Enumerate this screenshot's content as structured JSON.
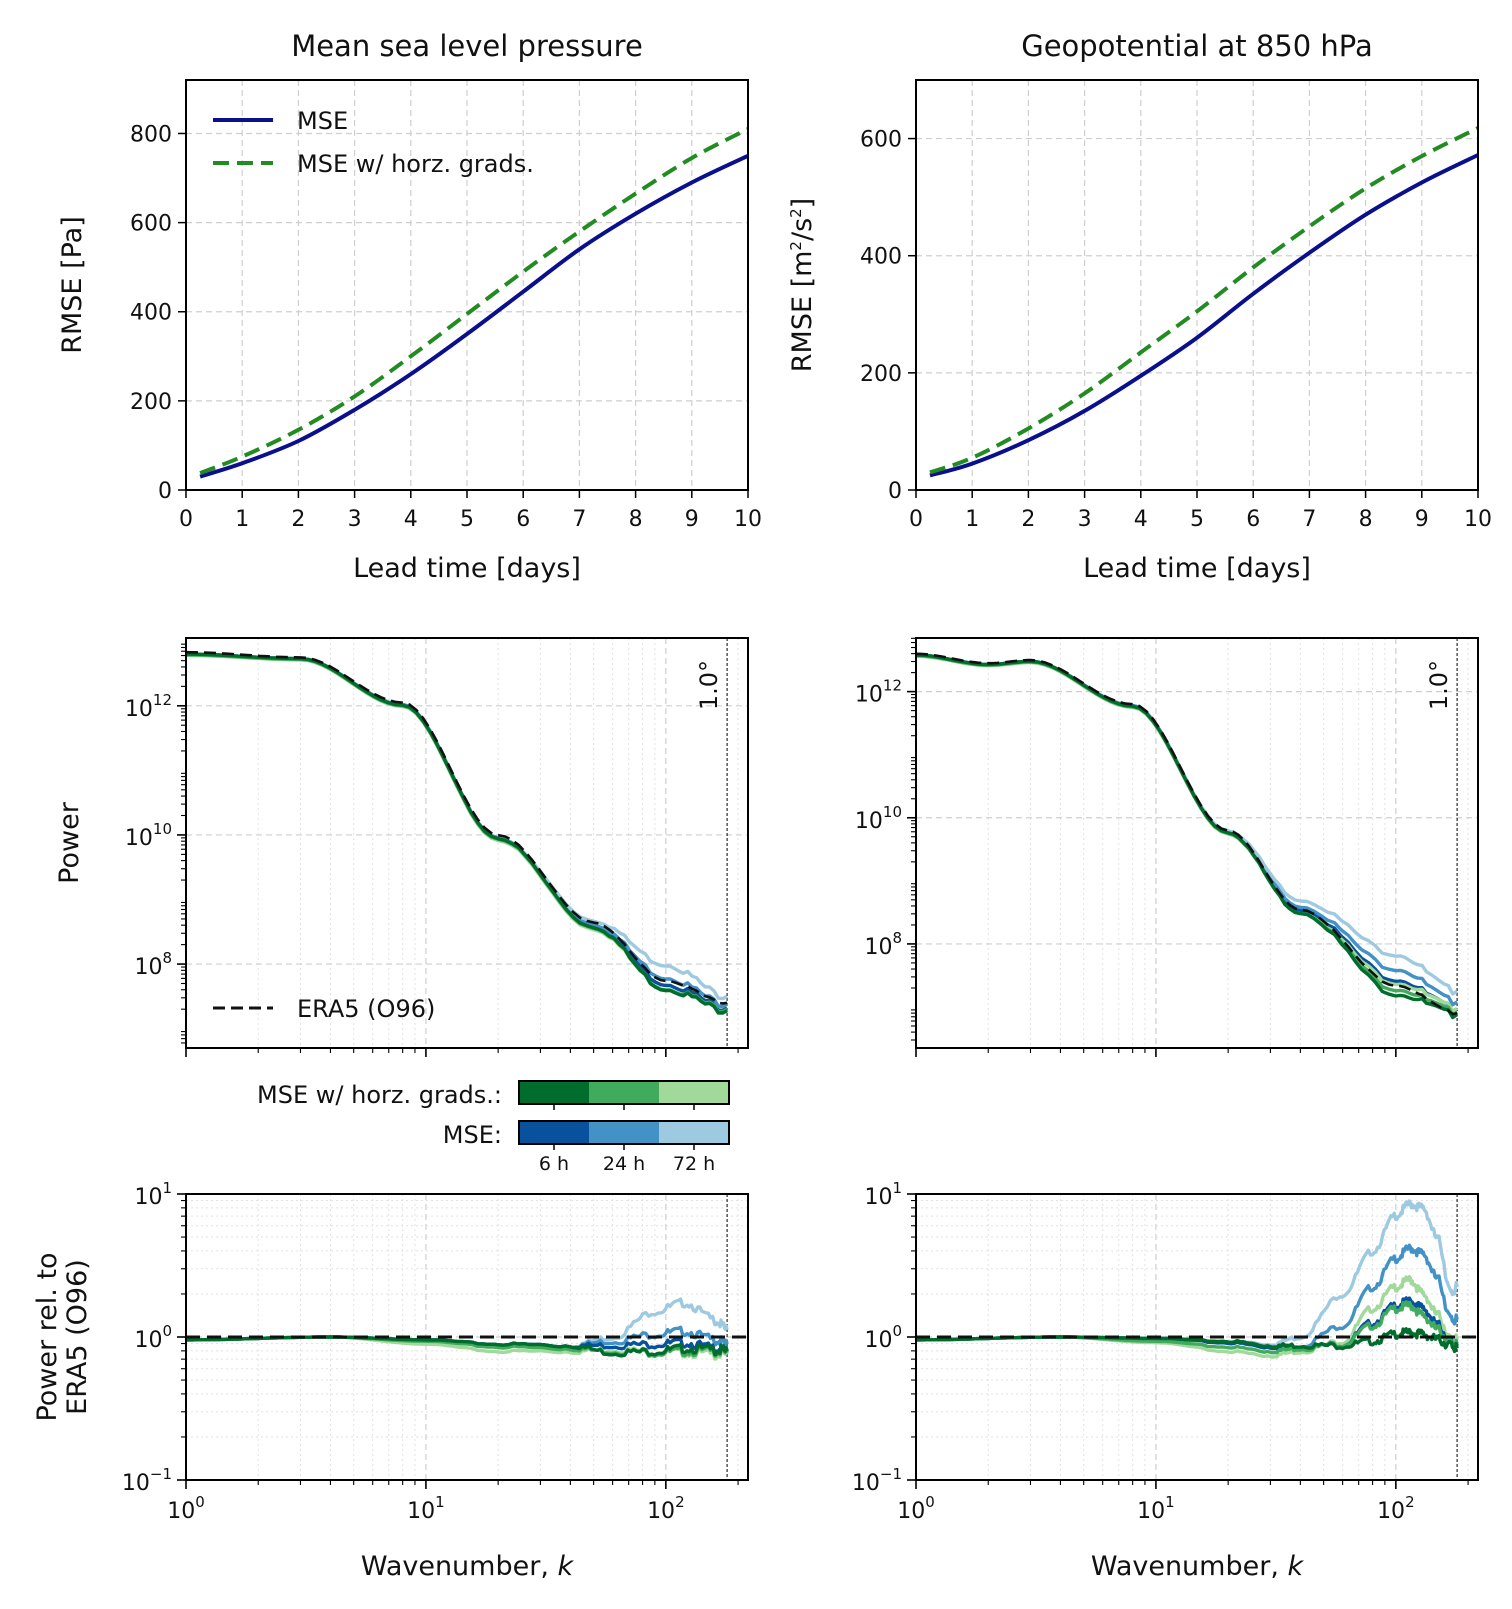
{
  "colors": {
    "mse": "#0a0f8c",
    "grads": "#228b22",
    "era5": "#111111",
    "grads_6h": "#006d2c",
    "grads_24h": "#41ab5d",
    "grads_72h": "#a1d99b",
    "mse_6h": "#08519c",
    "mse_24h": "#4292c6",
    "mse_72h": "#9ecae1"
  },
  "colorbar": {
    "row1_label": "MSE w/ horz. grads.:",
    "row2_label": "MSE:",
    "ticks": [
      "6 h",
      "24 h",
      "72 h"
    ]
  },
  "chart_data": [
    {
      "id": "rmse_msl",
      "type": "line",
      "title": "Mean sea level pressure",
      "xlabel": "Lead time [days]",
      "ylabel": "RMSE [Pa]",
      "xlim": [
        0,
        10
      ],
      "ylim": [
        0,
        920
      ],
      "xticks": [
        0,
        1,
        2,
        3,
        4,
        5,
        6,
        7,
        8,
        9,
        10
      ],
      "xtick_labels": [
        "0",
        "1",
        "2",
        "3",
        "4",
        "5",
        "6",
        "7",
        "8",
        "9",
        "10"
      ],
      "yticks": [
        0,
        200,
        400,
        600,
        800
      ],
      "ytick_labels": [
        "0",
        "200",
        "400",
        "600",
        "800"
      ],
      "legend": [
        {
          "label": "MSE",
          "style": "solid",
          "color": "#0a0f8c"
        },
        {
          "label": "MSE w/ horz. grads.",
          "style": "dashed",
          "color": "#228b22"
        }
      ],
      "x": [
        0.25,
        1,
        2,
        3,
        4,
        5,
        6,
        7,
        8,
        9,
        10
      ],
      "series": [
        {
          "name": "MSE",
          "style": "solid",
          "color": "#0a0f8c",
          "values": [
            30,
            60,
            110,
            180,
            260,
            350,
            445,
            540,
            620,
            690,
            750
          ]
        },
        {
          "name": "MSE w/ horz. grads.",
          "style": "dashed",
          "color": "#228b22",
          "values": [
            38,
            75,
            135,
            210,
            300,
            395,
            490,
            580,
            665,
            745,
            810
          ]
        }
      ]
    },
    {
      "id": "rmse_z850",
      "type": "line",
      "title": "Geopotential at 850 hPa",
      "xlabel": "Lead time [days]",
      "ylabel": "RMSE [m²/s²]",
      "xlim": [
        0,
        10
      ],
      "ylim": [
        0,
        700
      ],
      "xticks": [
        0,
        1,
        2,
        3,
        4,
        5,
        6,
        7,
        8,
        9,
        10
      ],
      "xtick_labels": [
        "0",
        "1",
        "2",
        "3",
        "4",
        "5",
        "6",
        "7",
        "8",
        "9",
        "10"
      ],
      "yticks": [
        0,
        200,
        400,
        600
      ],
      "ytick_labels": [
        "0",
        "200",
        "400",
        "600"
      ],
      "x": [
        0.25,
        1,
        2,
        3,
        4,
        5,
        6,
        7,
        8,
        9,
        10
      ],
      "series": [
        {
          "name": "MSE",
          "style": "solid",
          "color": "#0a0f8c",
          "values": [
            25,
            45,
            85,
            135,
            195,
            260,
            335,
            405,
            470,
            525,
            572
          ]
        },
        {
          "name": "MSE w/ horz. grads.",
          "style": "dashed",
          "color": "#228b22",
          "values": [
            30,
            55,
            105,
            165,
            235,
            305,
            380,
            450,
            515,
            570,
            618
          ]
        }
      ]
    },
    {
      "id": "spec_msl",
      "type": "line",
      "xscale": "log",
      "yscale": "log",
      "ylabel": "Power",
      "xlim": [
        1,
        220
      ],
      "ylim_log10": [
        6.7,
        13.05
      ],
      "yticks_log10": [
        8,
        10,
        12
      ],
      "ytick_labels": [
        {
          "base": "10",
          "exp": "8"
        },
        {
          "base": "10",
          "exp": "10"
        },
        {
          "base": "10",
          "exp": "12"
        }
      ],
      "vline_k": 180,
      "vline_label": "1.0°",
      "legend": [
        {
          "label": "ERA5 (O96)",
          "style": "dashed",
          "color": "#111111"
        }
      ],
      "reference": {
        "name": "ERA5 (O96)",
        "k": [
          1,
          3,
          8,
          20,
          50,
          100,
          180
        ],
        "log10_power": [
          12.83,
          12.75,
          12.05,
          10.0,
          8.65,
          7.75,
          7.4
        ]
      },
      "series": [
        {
          "name": "MSE 6 h",
          "color": "#08519c",
          "k": [
            1,
            3,
            8,
            20,
            50,
            100,
            180
          ],
          "log10_power": [
            12.8,
            12.73,
            12.02,
            9.96,
            8.6,
            7.7,
            7.32
          ]
        },
        {
          "name": "MSE 24 h",
          "color": "#4292c6",
          "k": [
            1,
            3,
            8,
            20,
            50,
            100,
            180
          ],
          "log10_power": [
            12.8,
            12.73,
            12.02,
            9.96,
            8.62,
            7.8,
            7.38
          ]
        },
        {
          "name": "MSE 72 h",
          "color": "#9ecae1",
          "k": [
            1,
            3,
            8,
            20,
            50,
            100,
            180
          ],
          "log10_power": [
            12.79,
            12.72,
            12.01,
            9.95,
            8.68,
            8.0,
            7.5
          ]
        },
        {
          "name": "MSE w/ horz. grads. 72 h",
          "color": "#a1d99b",
          "k": [
            1,
            3,
            8,
            20,
            50,
            100,
            180
          ],
          "log10_power": [
            12.78,
            12.71,
            11.99,
            9.92,
            8.55,
            7.62,
            7.28
          ]
        },
        {
          "name": "MSE w/ horz. grads. 24 h",
          "color": "#41ab5d",
          "k": [
            1,
            3,
            8,
            20,
            50,
            100,
            180
          ],
          "log10_power": [
            12.79,
            12.72,
            12.0,
            9.94,
            8.57,
            7.63,
            7.3
          ]
        },
        {
          "name": "MSE w/ horz. grads. 6 h",
          "color": "#006d2c",
          "k": [
            1,
            3,
            8,
            20,
            50,
            100,
            180
          ],
          "log10_power": [
            12.8,
            12.73,
            12.01,
            9.95,
            8.58,
            7.62,
            7.28
          ]
        }
      ]
    },
    {
      "id": "spec_z850",
      "type": "line",
      "xscale": "log",
      "yscale": "log",
      "xlim": [
        1,
        220
      ],
      "ylim_log10": [
        6.35,
        12.85
      ],
      "yticks_log10": [
        8,
        10,
        12
      ],
      "ytick_labels": [
        {
          "base": "10",
          "exp": "8"
        },
        {
          "base": "10",
          "exp": "10"
        },
        {
          "base": "10",
          "exp": "12"
        }
      ],
      "vline_k": 180,
      "vline_label": "1.0°",
      "reference": {
        "name": "ERA5 (O96)",
        "k": [
          1,
          2,
          3,
          8,
          20,
          40,
          100,
          180
        ],
        "log10_power": [
          12.6,
          12.45,
          12.5,
          11.8,
          9.8,
          8.55,
          7.35,
          6.9
        ]
      },
      "series": [
        {
          "name": "MSE 6 h",
          "color": "#08519c",
          "k": [
            1,
            2,
            3,
            8,
            20,
            40,
            100,
            180
          ],
          "log10_power": [
            12.58,
            12.43,
            12.48,
            11.78,
            9.78,
            8.55,
            7.45,
            6.97
          ]
        },
        {
          "name": "MSE 24 h",
          "color": "#4292c6",
          "k": [
            1,
            2,
            3,
            8,
            20,
            40,
            100,
            180
          ],
          "log10_power": [
            12.58,
            12.43,
            12.48,
            11.78,
            9.79,
            8.6,
            7.62,
            7.08
          ]
        },
        {
          "name": "MSE 72 h",
          "color": "#9ecae1",
          "k": [
            1,
            2,
            3,
            8,
            20,
            40,
            100,
            180
          ],
          "log10_power": [
            12.57,
            12.42,
            12.47,
            11.77,
            9.8,
            8.7,
            7.85,
            7.25
          ]
        },
        {
          "name": "MSE w/ horz. grads. 72 h",
          "color": "#a1d99b",
          "k": [
            1,
            2,
            3,
            8,
            20,
            40,
            100,
            180
          ],
          "log10_power": [
            12.56,
            12.41,
            12.46,
            11.75,
            9.75,
            8.5,
            7.4,
            6.98
          ]
        },
        {
          "name": "MSE w/ horz. grads. 24 h",
          "color": "#41ab5d",
          "k": [
            1,
            2,
            3,
            8,
            20,
            40,
            100,
            180
          ],
          "log10_power": [
            12.57,
            12.42,
            12.47,
            11.76,
            9.76,
            8.5,
            7.3,
            6.92
          ]
        },
        {
          "name": "MSE w/ horz. grads. 6 h",
          "color": "#006d2c",
          "k": [
            1,
            2,
            3,
            8,
            20,
            40,
            100,
            180
          ],
          "log10_power": [
            12.58,
            12.43,
            12.48,
            11.77,
            9.77,
            8.5,
            7.22,
            6.88
          ]
        }
      ]
    },
    {
      "id": "rel_msl",
      "type": "line",
      "xscale": "log",
      "yscale": "log",
      "xlabel": "Wavenumber, k",
      "ylabel": "Power rel. to ERA5 (O96)",
      "ylabel_lines": [
        "Power rel. to",
        "ERA5 (O96)"
      ],
      "xlim": [
        1,
        220
      ],
      "ylim_log10": [
        -1,
        1
      ],
      "xticks": [
        1,
        10,
        100
      ],
      "xtick_labels": [
        {
          "base": "10",
          "exp": "0"
        },
        {
          "base": "10",
          "exp": "1"
        },
        {
          "base": "10",
          "exp": "2"
        }
      ],
      "yticks_log10": [
        -1,
        0,
        1
      ],
      "ytick_labels": [
        {
          "base": "10",
          "exp": "−1"
        },
        {
          "base": "10",
          "exp": "0"
        },
        {
          "base": "10",
          "exp": "1"
        }
      ],
      "vline_k": 180,
      "hline": 1.0,
      "series": [
        {
          "name": "MSE 72 h",
          "color": "#9ecae1",
          "k": [
            1,
            4,
            10,
            20,
            40,
            60,
            90,
            120,
            160,
            180
          ],
          "log10_ratio": [
            -0.02,
            0.0,
            -0.02,
            -0.05,
            -0.06,
            0.0,
            0.18,
            0.24,
            0.12,
            0.05
          ]
        },
        {
          "name": "MSE 24 h",
          "color": "#4292c6",
          "k": [
            1,
            4,
            10,
            20,
            40,
            60,
            90,
            120,
            160,
            180
          ],
          "log10_ratio": [
            -0.02,
            0.0,
            -0.02,
            -0.05,
            -0.06,
            -0.03,
            0.02,
            0.04,
            -0.02,
            -0.05
          ]
        },
        {
          "name": "MSE 6 h",
          "color": "#08519c",
          "k": [
            1,
            4,
            10,
            20,
            40,
            60,
            90,
            120,
            160,
            180
          ],
          "log10_ratio": [
            -0.02,
            0.0,
            -0.02,
            -0.05,
            -0.06,
            -0.06,
            -0.05,
            -0.04,
            -0.08,
            -0.1
          ]
        },
        {
          "name": "MSE w/ horz. grads. 72 h",
          "color": "#a1d99b",
          "k": [
            1,
            4,
            10,
            20,
            40,
            60,
            90,
            120,
            160,
            180
          ],
          "log10_ratio": [
            -0.02,
            0.0,
            -0.05,
            -0.1,
            -0.1,
            -0.09,
            -0.1,
            -0.11,
            -0.12,
            -0.12
          ]
        },
        {
          "name": "MSE w/ horz. grads. 24 h",
          "color": "#41ab5d",
          "k": [
            1,
            4,
            10,
            20,
            40,
            60,
            90,
            120,
            160,
            180
          ],
          "log10_ratio": [
            -0.02,
            0.0,
            -0.03,
            -0.07,
            -0.08,
            -0.1,
            -0.11,
            -0.1,
            -0.1,
            -0.11
          ]
        },
        {
          "name": "MSE w/ horz. grads. 6 h",
          "color": "#006d2c",
          "k": [
            1,
            4,
            10,
            20,
            40,
            60,
            90,
            120,
            160,
            180
          ],
          "log10_ratio": [
            -0.02,
            0.0,
            -0.02,
            -0.05,
            -0.06,
            -0.11,
            -0.1,
            -0.08,
            -0.09,
            -0.1
          ]
        }
      ]
    },
    {
      "id": "rel_z850",
      "type": "line",
      "xscale": "log",
      "yscale": "log",
      "xlabel": "Wavenumber, k",
      "xlim": [
        1,
        220
      ],
      "ylim_log10": [
        -1,
        1
      ],
      "xticks": [
        1,
        10,
        100
      ],
      "xtick_labels": [
        {
          "base": "10",
          "exp": "0"
        },
        {
          "base": "10",
          "exp": "1"
        },
        {
          "base": "10",
          "exp": "2"
        }
      ],
      "yticks_log10": [
        -1,
        0,
        1
      ],
      "ytick_labels": [
        {
          "base": "10",
          "exp": "−1"
        },
        {
          "base": "10",
          "exp": "0"
        },
        {
          "base": "10",
          "exp": "1"
        }
      ],
      "vline_k": 180,
      "hline": 1.0,
      "series": [
        {
          "name": "MSE 72 h",
          "color": "#9ecae1",
          "k": [
            1,
            4,
            10,
            20,
            30,
            40,
            60,
            80,
            100,
            115,
            130,
            150,
            170,
            180
          ],
          "log10_ratio": [
            -0.02,
            0.0,
            -0.01,
            -0.03,
            -0.05,
            0.0,
            0.3,
            0.6,
            0.85,
            0.93,
            0.9,
            0.68,
            0.3,
            0.35
          ]
        },
        {
          "name": "MSE 24 h",
          "color": "#4292c6",
          "k": [
            1,
            4,
            10,
            20,
            30,
            40,
            60,
            80,
            100,
            115,
            130,
            150,
            170,
            180
          ],
          "log10_ratio": [
            -0.02,
            0.0,
            -0.01,
            -0.03,
            -0.06,
            -0.06,
            0.08,
            0.35,
            0.55,
            0.62,
            0.58,
            0.4,
            0.12,
            0.12
          ]
        },
        {
          "name": "MSE w/ horz. grads. 72 h",
          "color": "#a1d99b",
          "k": [
            1,
            4,
            10,
            20,
            30,
            40,
            60,
            80,
            100,
            115,
            130,
            150,
            170,
            180
          ],
          "log10_ratio": [
            -0.02,
            0.0,
            -0.04,
            -0.1,
            -0.13,
            -0.1,
            -0.03,
            0.2,
            0.35,
            0.4,
            0.3,
            0.15,
            -0.02,
            -0.02
          ]
        },
        {
          "name": "MSE 6 h",
          "color": "#08519c",
          "k": [
            1,
            4,
            10,
            20,
            30,
            40,
            60,
            80,
            100,
            115,
            130,
            150,
            170,
            180
          ],
          "log10_ratio": [
            -0.02,
            0.0,
            -0.01,
            -0.04,
            -0.07,
            -0.07,
            -0.05,
            0.1,
            0.22,
            0.25,
            0.2,
            0.08,
            -0.04,
            -0.06
          ]
        },
        {
          "name": "MSE w/ horz. grads. 24 h",
          "color": "#41ab5d",
          "k": [
            1,
            4,
            10,
            20,
            30,
            40,
            60,
            80,
            100,
            115,
            130,
            150,
            170,
            180
          ],
          "log10_ratio": [
            -0.02,
            0.0,
            -0.03,
            -0.07,
            -0.1,
            -0.08,
            -0.05,
            0.08,
            0.2,
            0.22,
            0.15,
            0.05,
            -0.05,
            -0.06
          ]
        },
        {
          "name": "MSE w/ horz. grads. 6 h",
          "color": "#006d2c",
          "k": [
            1,
            4,
            10,
            20,
            30,
            40,
            60,
            80,
            100,
            115,
            130,
            150,
            170,
            180
          ],
          "log10_ratio": [
            -0.02,
            0.0,
            -0.01,
            -0.03,
            -0.06,
            -0.06,
            -0.06,
            -0.03,
            0.02,
            0.03,
            0.02,
            -0.02,
            -0.06,
            -0.08
          ]
        }
      ]
    }
  ]
}
